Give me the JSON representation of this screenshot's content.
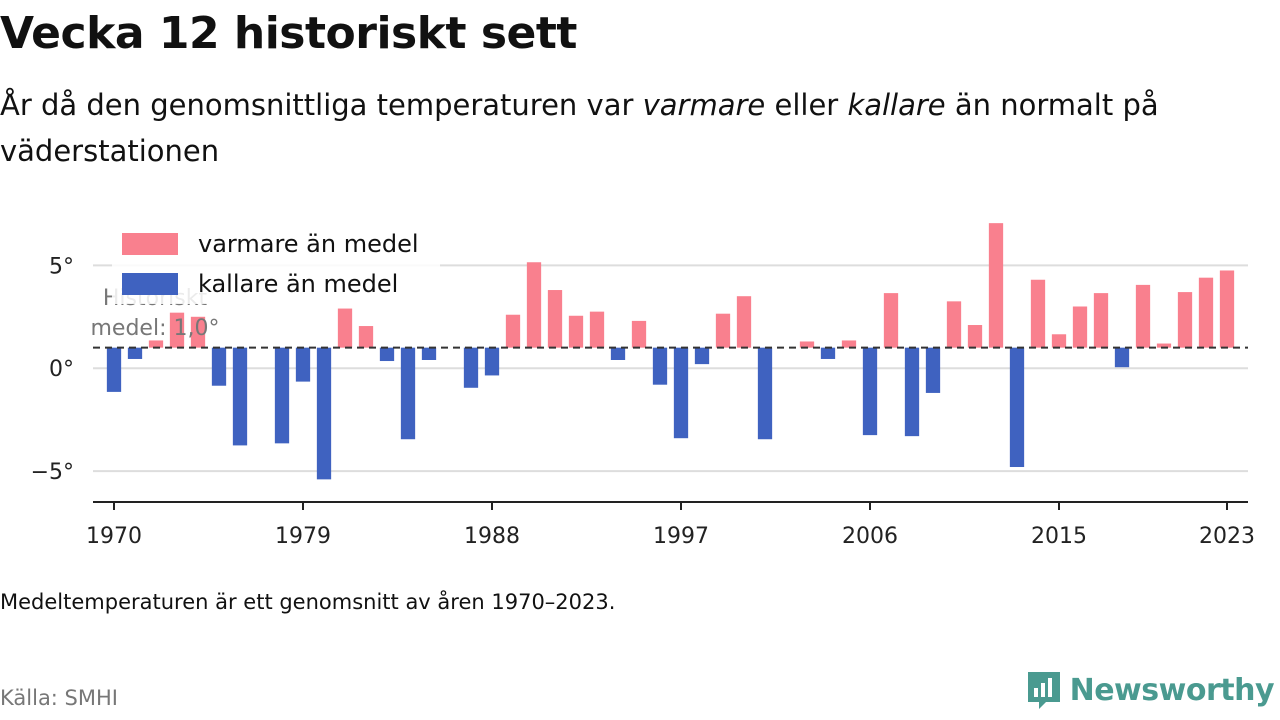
{
  "title": "Vecka 12 historiskt sett",
  "subtitle": {
    "part1": "År då den genomsnittliga temperaturen var ",
    "warm": "varmare",
    "part2": " eller ",
    "cold": "kallare",
    "part3": " än normalt på väderstationen"
  },
  "note": "Medeltemperaturen är ett genomsnitt av åren 1970–2023.",
  "source": "Källa: SMHI",
  "brand": {
    "name": "Newsworthy",
    "color": "#4a9a90",
    "icon": "newsworthy-logo-icon"
  },
  "colors": {
    "warm": "#f9808e",
    "cold": "#3f62c0",
    "reference": "#333333",
    "grid": "#dddddd",
    "axis": "#222222"
  },
  "chart_data": {
    "type": "bar",
    "x": [
      1970,
      1971,
      1972,
      1973,
      1974,
      1975,
      1976,
      1977,
      1978,
      1979,
      1980,
      1981,
      1982,
      1983,
      1984,
      1985,
      1986,
      1987,
      1988,
      1989,
      1990,
      1991,
      1992,
      1993,
      1994,
      1995,
      1996,
      1997,
      1998,
      1999,
      2000,
      2001,
      2002,
      2003,
      2004,
      2005,
      2006,
      2007,
      2008,
      2009,
      2010,
      2011,
      2012,
      2013,
      2014,
      2015,
      2016,
      2017,
      2018,
      2019,
      2020,
      2021,
      2022,
      2023
    ],
    "values": [
      -1.15,
      0.45,
      1.35,
      2.7,
      2.5,
      -0.85,
      -3.75,
      null,
      -3.65,
      -0.65,
      -5.4,
      2.9,
      2.05,
      0.35,
      -3.45,
      0.4,
      null,
      -0.95,
      -0.35,
      2.6,
      5.15,
      3.8,
      2.55,
      2.75,
      0.4,
      2.3,
      -0.8,
      -3.4,
      0.2,
      2.65,
      3.5,
      -3.45,
      null,
      1.3,
      0.45,
      1.35,
      -3.25,
      3.65,
      -3.3,
      -1.2,
      3.25,
      2.1,
      7.05,
      -4.8,
      4.3,
      1.65,
      3.0,
      3.65,
      0.05,
      4.05,
      1.2,
      3.7,
      4.4,
      4.75
    ],
    "series": [
      {
        "name": "varmare än medel",
        "color": "#f9808e"
      },
      {
        "name": "kallare än medel",
        "color": "#3f62c0"
      }
    ],
    "reference": {
      "value": 1.0,
      "label_line1": "Historiskt",
      "label_line2": "medel: 1,0°"
    },
    "ylim": [
      -6.5,
      7.3
    ],
    "yticks": [
      -5,
      0,
      5
    ],
    "ytick_labels": [
      "−5°",
      "0°",
      "5°"
    ],
    "xticks": [
      1970,
      1979,
      1988,
      1997,
      2006,
      2015,
      2023
    ],
    "xlim": [
      1969.0,
      2024.0
    ],
    "grid": true,
    "legend_position": "top-left"
  }
}
